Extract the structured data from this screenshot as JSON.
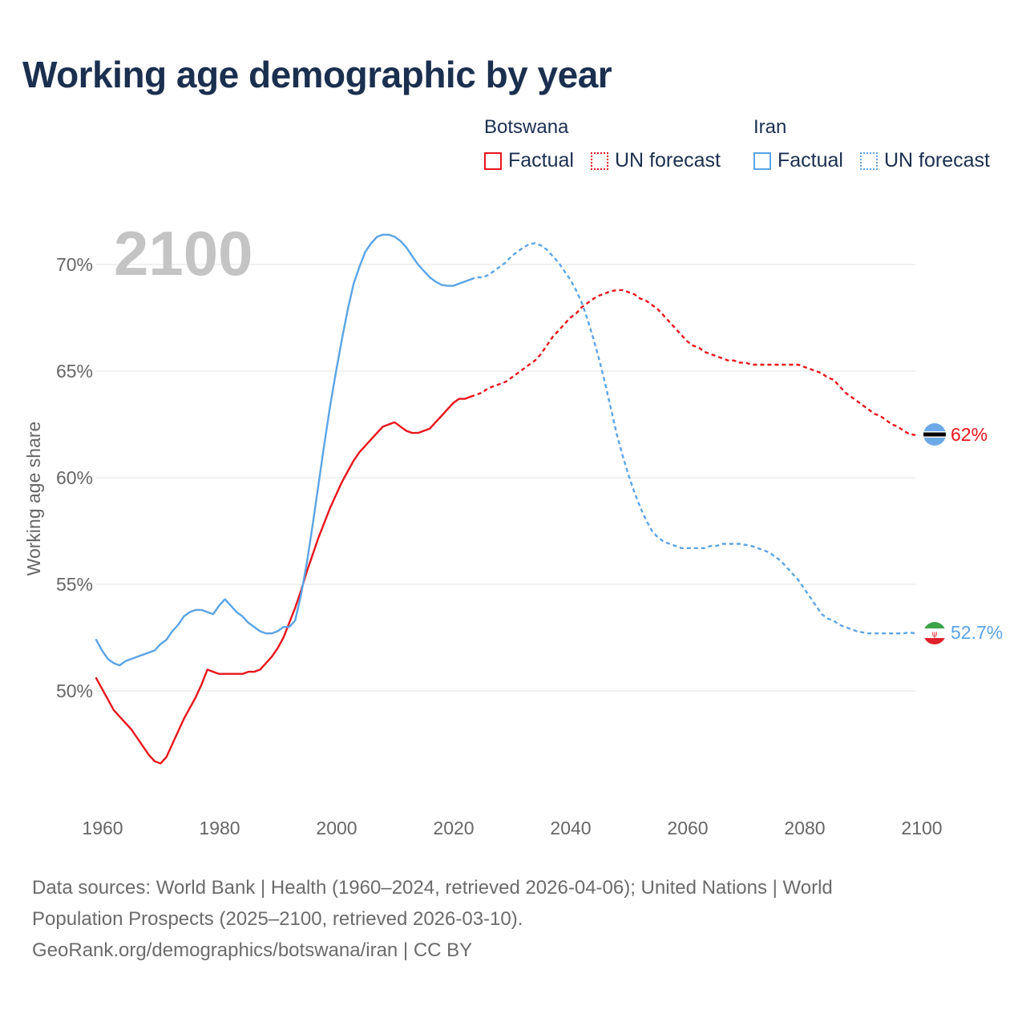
{
  "page": {
    "title": "Working age demographic by year",
    "sources_line1": "Data sources: World Bank | Health (1960–2024, retrieved 2026-04-06); United Nations | World",
    "sources_line2": "Population Prospects (2025–2100, retrieved 2026-03-10).",
    "sources_line3": "GeoRank.org/demographics/botswana/iran | CC BY"
  },
  "legend": {
    "groups": [
      {
        "name": "Botswana",
        "factual_label": "Factual",
        "forecast_label": "UN forecast",
        "color": "#e8141b"
      },
      {
        "name": "Iran",
        "factual_label": "Factual",
        "forecast_label": "UN forecast",
        "color": "#5aa4e6"
      }
    ]
  },
  "chart_data": {
    "type": "line",
    "title": "Working age demographic by year",
    "xlabel": "",
    "ylabel": "Working age share",
    "current_year_label": "2100",
    "xlim": [
      1960,
      2100
    ],
    "ylim": [
      45.5,
      72.5
    ],
    "x_ticks": [
      1960,
      1980,
      2000,
      2020,
      2040,
      2060,
      2080,
      2100
    ],
    "y_ticks": [
      {
        "value": 50,
        "label": "50%"
      },
      {
        "value": 55,
        "label": "55%"
      },
      {
        "value": 60,
        "label": "60%"
      },
      {
        "value": 65,
        "label": "65%"
      },
      {
        "value": 70,
        "label": "70%"
      }
    ],
    "grid": true,
    "series": [
      {
        "name": "Botswana",
        "color": "#e8141b",
        "end_label": "62%",
        "factual": [
          [
            1960,
            50.6
          ],
          [
            1961,
            50.1
          ],
          [
            1962,
            49.6
          ],
          [
            1963,
            49.1
          ],
          [
            1964,
            48.8
          ],
          [
            1965,
            48.5
          ],
          [
            1966,
            48.2
          ],
          [
            1967,
            47.8
          ],
          [
            1968,
            47.4
          ],
          [
            1969,
            47.0
          ],
          [
            1970,
            46.7
          ],
          [
            1971,
            46.6
          ],
          [
            1972,
            46.9
          ],
          [
            1973,
            47.5
          ],
          [
            1974,
            48.1
          ],
          [
            1975,
            48.7
          ],
          [
            1976,
            49.2
          ],
          [
            1977,
            49.7
          ],
          [
            1978,
            50.3
          ],
          [
            1979,
            51.0
          ],
          [
            1980,
            50.9
          ],
          [
            1981,
            50.8
          ],
          [
            1982,
            50.8
          ],
          [
            1983,
            50.8
          ],
          [
            1984,
            50.8
          ],
          [
            1985,
            50.8
          ],
          [
            1986,
            50.9
          ],
          [
            1987,
            50.9
          ],
          [
            1988,
            51.0
          ],
          [
            1989,
            51.3
          ],
          [
            1990,
            51.6
          ],
          [
            1991,
            52.0
          ],
          [
            1992,
            52.5
          ],
          [
            1993,
            53.2
          ],
          [
            1994,
            53.9
          ],
          [
            1995,
            54.7
          ],
          [
            1996,
            55.6
          ],
          [
            1997,
            56.4
          ],
          [
            1998,
            57.2
          ],
          [
            1999,
            57.9
          ],
          [
            2000,
            58.6
          ],
          [
            2001,
            59.2
          ],
          [
            2002,
            59.8
          ],
          [
            2003,
            60.3
          ],
          [
            2004,
            60.8
          ],
          [
            2005,
            61.2
          ],
          [
            2006,
            61.5
          ],
          [
            2007,
            61.8
          ],
          [
            2008,
            62.1
          ],
          [
            2009,
            62.4
          ],
          [
            2010,
            62.5
          ],
          [
            2011,
            62.6
          ],
          [
            2012,
            62.4
          ],
          [
            2013,
            62.2
          ],
          [
            2014,
            62.1
          ],
          [
            2015,
            62.1
          ],
          [
            2016,
            62.2
          ],
          [
            2017,
            62.3
          ],
          [
            2018,
            62.6
          ],
          [
            2019,
            62.9
          ],
          [
            2020,
            63.2
          ],
          [
            2021,
            63.5
          ],
          [
            2022,
            63.7
          ],
          [
            2023,
            63.7
          ],
          [
            2024,
            63.8
          ]
        ],
        "forecast": [
          [
            2024,
            63.8
          ],
          [
            2025,
            63.9
          ],
          [
            2026,
            64.0
          ],
          [
            2027,
            64.2
          ],
          [
            2028,
            64.3
          ],
          [
            2029,
            64.4
          ],
          [
            2030,
            64.5
          ],
          [
            2031,
            64.7
          ],
          [
            2032,
            64.9
          ],
          [
            2033,
            65.1
          ],
          [
            2034,
            65.3
          ],
          [
            2035,
            65.5
          ],
          [
            2036,
            65.8
          ],
          [
            2037,
            66.2
          ],
          [
            2038,
            66.6
          ],
          [
            2039,
            66.9
          ],
          [
            2040,
            67.2
          ],
          [
            2041,
            67.5
          ],
          [
            2042,
            67.7
          ],
          [
            2043,
            68.0
          ],
          [
            2044,
            68.2
          ],
          [
            2045,
            68.4
          ],
          [
            2046,
            68.55
          ],
          [
            2047,
            68.65
          ],
          [
            2048,
            68.75
          ],
          [
            2049,
            68.8
          ],
          [
            2050,
            68.8
          ],
          [
            2051,
            68.7
          ],
          [
            2052,
            68.6
          ],
          [
            2053,
            68.4
          ],
          [
            2054,
            68.3
          ],
          [
            2055,
            68.1
          ],
          [
            2056,
            67.9
          ],
          [
            2057,
            67.6
          ],
          [
            2058,
            67.3
          ],
          [
            2059,
            67.0
          ],
          [
            2060,
            66.7
          ],
          [
            2061,
            66.4
          ],
          [
            2062,
            66.2
          ],
          [
            2063,
            66.1
          ],
          [
            2064,
            65.9
          ],
          [
            2065,
            65.8
          ],
          [
            2066,
            65.7
          ],
          [
            2067,
            65.6
          ],
          [
            2068,
            65.5
          ],
          [
            2069,
            65.5
          ],
          [
            2070,
            65.4
          ],
          [
            2071,
            65.4
          ],
          [
            2072,
            65.3
          ],
          [
            2073,
            65.3
          ],
          [
            2074,
            65.3
          ],
          [
            2075,
            65.3
          ],
          [
            2076,
            65.3
          ],
          [
            2077,
            65.3
          ],
          [
            2078,
            65.3
          ],
          [
            2079,
            65.3
          ],
          [
            2080,
            65.3
          ],
          [
            2081,
            65.2
          ],
          [
            2082,
            65.1
          ],
          [
            2083,
            65.0
          ],
          [
            2084,
            64.9
          ],
          [
            2085,
            64.7
          ],
          [
            2086,
            64.6
          ],
          [
            2087,
            64.3
          ],
          [
            2088,
            64.0
          ],
          [
            2089,
            63.8
          ],
          [
            2090,
            63.6
          ],
          [
            2091,
            63.4
          ],
          [
            2092,
            63.2
          ],
          [
            2093,
            63.0
          ],
          [
            2094,
            62.9
          ],
          [
            2095,
            62.7
          ],
          [
            2096,
            62.5
          ],
          [
            2097,
            62.4
          ],
          [
            2098,
            62.2
          ],
          [
            2099,
            62.05
          ],
          [
            2100,
            62.0
          ]
        ]
      },
      {
        "name": "Iran",
        "color": "#5aa4e6",
        "end_label": "52.7%",
        "factual": [
          [
            1960,
            52.4
          ],
          [
            1961,
            51.9
          ],
          [
            1962,
            51.5
          ],
          [
            1963,
            51.3
          ],
          [
            1964,
            51.2
          ],
          [
            1965,
            51.4
          ],
          [
            1966,
            51.5
          ],
          [
            1967,
            51.6
          ],
          [
            1968,
            51.7
          ],
          [
            1969,
            51.8
          ],
          [
            1970,
            51.9
          ],
          [
            1971,
            52.2
          ],
          [
            1972,
            52.4
          ],
          [
            1973,
            52.8
          ],
          [
            1974,
            53.1
          ],
          [
            1975,
            53.5
          ],
          [
            1976,
            53.7
          ],
          [
            1977,
            53.8
          ],
          [
            1978,
            53.8
          ],
          [
            1979,
            53.7
          ],
          [
            1980,
            53.6
          ],
          [
            1981,
            54.0
          ],
          [
            1982,
            54.3
          ],
          [
            1983,
            54.0
          ],
          [
            1984,
            53.7
          ],
          [
            1985,
            53.5
          ],
          [
            1986,
            53.2
          ],
          [
            1987,
            53.0
          ],
          [
            1988,
            52.8
          ],
          [
            1989,
            52.7
          ],
          [
            1990,
            52.7
          ],
          [
            1991,
            52.8
          ],
          [
            1992,
            53.0
          ],
          [
            1993,
            53.0
          ],
          [
            1994,
            53.3
          ],
          [
            1995,
            54.5
          ],
          [
            1996,
            56.0
          ],
          [
            1997,
            57.8
          ],
          [
            1998,
            59.7
          ],
          [
            1999,
            61.6
          ],
          [
            2000,
            63.4
          ],
          [
            2001,
            65.0
          ],
          [
            2002,
            66.5
          ],
          [
            2003,
            67.9
          ],
          [
            2004,
            69.1
          ],
          [
            2005,
            69.9
          ],
          [
            2006,
            70.6
          ],
          [
            2007,
            71.0
          ],
          [
            2008,
            71.3
          ],
          [
            2009,
            71.4
          ],
          [
            2010,
            71.4
          ],
          [
            2011,
            71.3
          ],
          [
            2012,
            71.1
          ],
          [
            2013,
            70.8
          ],
          [
            2014,
            70.4
          ],
          [
            2015,
            70.0
          ],
          [
            2016,
            69.7
          ],
          [
            2017,
            69.4
          ],
          [
            2018,
            69.2
          ],
          [
            2019,
            69.05
          ],
          [
            2020,
            69.0
          ],
          [
            2021,
            69.0
          ],
          [
            2022,
            69.1
          ],
          [
            2023,
            69.2
          ],
          [
            2024,
            69.3
          ]
        ],
        "forecast": [
          [
            2024,
            69.3
          ],
          [
            2025,
            69.4
          ],
          [
            2026,
            69.4
          ],
          [
            2027,
            69.5
          ],
          [
            2028,
            69.7
          ],
          [
            2029,
            69.9
          ],
          [
            2030,
            70.1
          ],
          [
            2031,
            70.4
          ],
          [
            2032,
            70.6
          ],
          [
            2033,
            70.8
          ],
          [
            2034,
            70.95
          ],
          [
            2035,
            71.0
          ],
          [
            2036,
            70.9
          ],
          [
            2037,
            70.7
          ],
          [
            2038,
            70.4
          ],
          [
            2039,
            70.1
          ],
          [
            2040,
            69.7
          ],
          [
            2041,
            69.3
          ],
          [
            2042,
            68.8
          ],
          [
            2043,
            68.2
          ],
          [
            2044,
            67.4
          ],
          [
            2045,
            66.5
          ],
          [
            2046,
            65.5
          ],
          [
            2047,
            64.4
          ],
          [
            2048,
            63.2
          ],
          [
            2049,
            62.0
          ],
          [
            2050,
            61.0
          ],
          [
            2051,
            60.1
          ],
          [
            2052,
            59.3
          ],
          [
            2053,
            58.6
          ],
          [
            2054,
            58.0
          ],
          [
            2055,
            57.5
          ],
          [
            2056,
            57.2
          ],
          [
            2057,
            57.0
          ],
          [
            2058,
            56.9
          ],
          [
            2059,
            56.8
          ],
          [
            2060,
            56.7
          ],
          [
            2061,
            56.7
          ],
          [
            2062,
            56.7
          ],
          [
            2063,
            56.7
          ],
          [
            2064,
            56.7
          ],
          [
            2065,
            56.8
          ],
          [
            2066,
            56.8
          ],
          [
            2067,
            56.9
          ],
          [
            2068,
            56.9
          ],
          [
            2069,
            56.9
          ],
          [
            2070,
            56.9
          ],
          [
            2071,
            56.85
          ],
          [
            2072,
            56.8
          ],
          [
            2073,
            56.7
          ],
          [
            2074,
            56.6
          ],
          [
            2075,
            56.5
          ],
          [
            2076,
            56.3
          ],
          [
            2077,
            56.1
          ],
          [
            2078,
            55.8
          ],
          [
            2079,
            55.5
          ],
          [
            2080,
            55.2
          ],
          [
            2081,
            54.8
          ],
          [
            2082,
            54.4
          ],
          [
            2083,
            54.0
          ],
          [
            2084,
            53.6
          ],
          [
            2085,
            53.4
          ],
          [
            2086,
            53.3
          ],
          [
            2087,
            53.1
          ],
          [
            2088,
            53.0
          ],
          [
            2089,
            52.9
          ],
          [
            2090,
            52.8
          ],
          [
            2091,
            52.75
          ],
          [
            2092,
            52.7
          ],
          [
            2093,
            52.7
          ],
          [
            2094,
            52.7
          ],
          [
            2095,
            52.7
          ],
          [
            2096,
            52.7
          ],
          [
            2097,
            52.7
          ],
          [
            2098,
            52.7
          ],
          [
            2099,
            52.75
          ],
          [
            2100,
            52.7
          ]
        ]
      }
    ]
  }
}
